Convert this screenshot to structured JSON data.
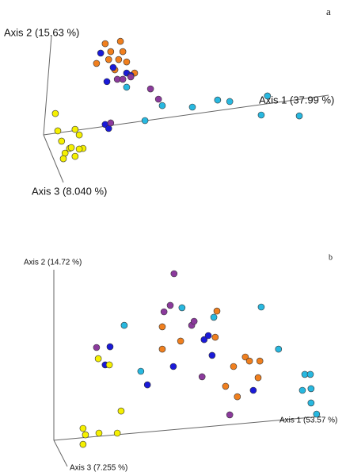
{
  "chart_data": [
    {
      "type": "scatter",
      "panel_label": "a",
      "axis1_label": "Axis 1 (37.99 %)",
      "axis2_label": "Axis 2 (15.63 %)",
      "axis3_label": "Axis 3 (8.040 %)",
      "xlim": [
        0,
        100
      ],
      "ylim": [
        0,
        100
      ],
      "series": [
        {
          "color": "#f07f1e",
          "x": [
            30.4,
            34.8,
            32.0,
            27.9,
            31.4,
            34.3,
            36.6,
            33.2,
            38.9,
            35.5
          ],
          "values": [
            79.6,
            80.7,
            75.9,
            70.4,
            72.2,
            72.2,
            71.1,
            67.4,
            65.9,
            75.9
          ]
        },
        {
          "color": "#1a1ad8",
          "x": [
            29.1,
            32.7,
            30.9,
            36.6,
            37.8,
            30.4,
            31.4
          ],
          "values": [
            75.2,
            68.5,
            61.9,
            65.9,
            64.8,
            41.9,
            40.0
          ]
        },
        {
          "color": "#8b3a9c",
          "x": [
            33.9,
            37.8,
            35.5,
            43.5,
            45.8,
            32.0
          ],
          "values": [
            63.0,
            64.1,
            63.0,
            58.5,
            53.7,
            42.6
          ]
        },
        {
          "color": "#28b8e0",
          "x": [
            36.6,
            46.9,
            41.9,
            55.6,
            62.9,
            66.4,
            77.3,
            75.5,
            86.5
          ],
          "values": [
            59.3,
            50.7,
            43.7,
            50.0,
            53.3,
            52.6,
            55.2,
            46.3,
            45.9
          ]
        },
        {
          "color": "#f5f000",
          "x": [
            16.0,
            16.7,
            21.7,
            22.9,
            17.8,
            20.1,
            18.8,
            24.0,
            22.9,
            21.7,
            20.6,
            18.3
          ],
          "values": [
            47.0,
            38.9,
            39.6,
            37.0,
            34.1,
            30.7,
            28.5,
            30.7,
            30.4,
            27.0,
            31.1,
            25.9
          ]
        }
      ]
    },
    {
      "type": "scatter",
      "panel_label": "b",
      "axis1_label": "Axis 1 (53.57 %)",
      "axis2_label": "Axis 2 (14.72 %)",
      "axis3_label": "Axis 3 (7.255 %)",
      "xlim": [
        0,
        100
      ],
      "ylim": [
        0,
        100
      ],
      "series": [
        {
          "color": "#8b3a9c",
          "x": [
            50.3,
            49.2,
            55.4,
            56.1,
            27.9,
            58.4,
            66.4,
            47.4
          ],
          "values": [
            85,
            71.7,
            63.3,
            65,
            54,
            41.7,
            25.7,
            69
          ]
        },
        {
          "color": "#28b8e0",
          "x": [
            52.6,
            35.9,
            61.8,
            75.5,
            80.5,
            40.7,
            88.1,
            89.7,
            89.9,
            89.9,
            91.5,
            87.4
          ],
          "values": [
            70.7,
            63.3,
            66.7,
            71,
            53.3,
            44,
            42.7,
            42.7,
            36.7,
            30.7,
            26,
            36
          ]
        },
        {
          "color": "#1a1ad8",
          "x": [
            31.8,
            30.4,
            59.0,
            60.2,
            61.3,
            50.1,
            42.6,
            73.2
          ],
          "values": [
            54.3,
            46.7,
            57.3,
            59,
            50.7,
            46,
            38.3,
            36
          ]
        },
        {
          "color": "#f07f1e",
          "x": [
            62.7,
            46.9,
            52.2,
            62.2,
            70.9,
            67.5,
            72.1,
            75.1,
            65.2,
            68.6,
            74.6,
            46.9
          ],
          "values": [
            69.3,
            62.7,
            56.7,
            58.3,
            50,
            46,
            48.3,
            48.3,
            37.7,
            33.3,
            41.3,
            53.3
          ]
        },
        {
          "color": "#f5f000",
          "x": [
            28.4,
            31.6,
            35.0,
            24.0,
            24.7,
            28.6,
            33.9,
            24.0
          ],
          "values": [
            49.3,
            46.7,
            27.3,
            20,
            17.3,
            18,
            18,
            13.3
          ]
        }
      ]
    }
  ]
}
